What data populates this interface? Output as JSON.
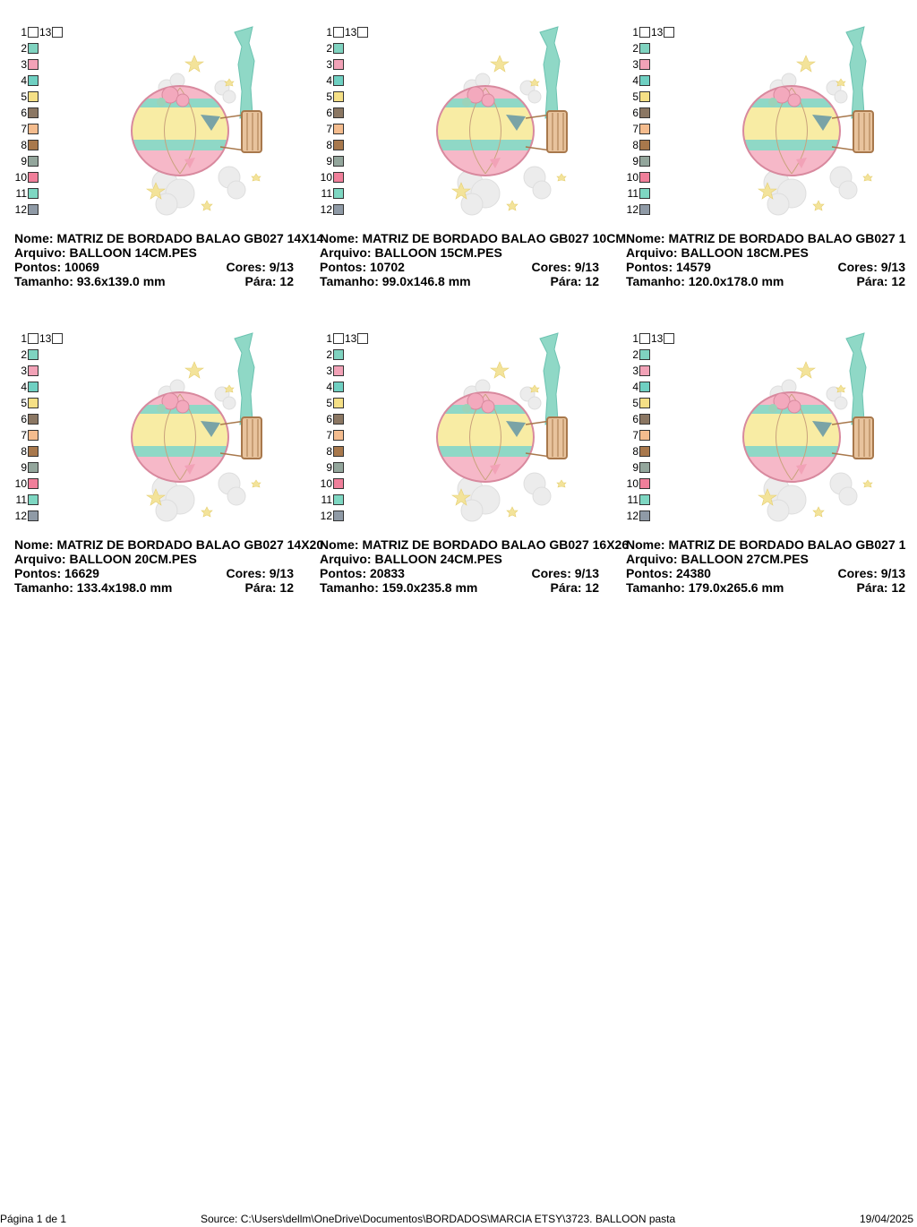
{
  "palette_colors": [
    "#ffffff",
    "#7fd3c0",
    "#f2a2b7",
    "#6fd0c2",
    "#f5e086",
    "#8b7763",
    "#f4bc8e",
    "#a8784c",
    "#93a69c",
    "#f07f9a",
    "#7ed7c2",
    "#8f9aa6"
  ],
  "palette": {
    "rows": [
      "1",
      "2",
      "3",
      "4",
      "5",
      "6",
      "7",
      "8",
      "9",
      "10",
      "11",
      "12"
    ],
    "extra": "13"
  },
  "designs": [
    {
      "nome": "Nome: MATRIZ DE BORDADO BALAO GB027 14X14",
      "arquivo": "Arquivo: BALLOON 14CM.PES",
      "pontos": "Pontos: 10069",
      "cores": "Cores: 9/13",
      "tamanho": "Tamanho: 93.6x139.0 mm",
      "para": "Pára: 12"
    },
    {
      "nome": "Nome: MATRIZ DE BORDADO BALAO GB027 10CM",
      "arquivo": "Arquivo: BALLOON 15CM.PES",
      "pontos": "Pontos: 10702",
      "cores": "Cores: 9/13",
      "tamanho": "Tamanho: 99.0x146.8 mm",
      "para": "Pára: 12"
    },
    {
      "nome": "Nome: MATRIZ DE BORDADO BALAO GB027 1",
      "arquivo": "Arquivo: BALLOON 18CM.PES",
      "pontos": "Pontos: 14579",
      "cores": "Cores: 9/13",
      "tamanho": "Tamanho: 120.0x178.0 mm",
      "para": "Pára: 12"
    },
    {
      "nome": "Nome: MATRIZ DE BORDADO BALAO GB027 14X20",
      "arquivo": "Arquivo: BALLOON 20CM.PES",
      "pontos": "Pontos: 16629",
      "cores": "Cores: 9/13",
      "tamanho": "Tamanho: 133.4x198.0 mm",
      "para": "Pára: 12"
    },
    {
      "nome": "Nome: MATRIZ DE BORDADO BALAO GB027 16X26",
      "arquivo": "Arquivo: BALLOON 24CM.PES",
      "pontos": "Pontos: 20833",
      "cores": "Cores: 9/13",
      "tamanho": "Tamanho: 159.0x235.8 mm",
      "para": "Pára: 12"
    },
    {
      "nome": "Nome: MATRIZ DE BORDADO BALAO GB027 1",
      "arquivo": "Arquivo: BALLOON 27CM.PES",
      "pontos": "Pontos: 24380",
      "cores": "Cores: 9/13",
      "tamanho": "Tamanho: 179.0x265.6 mm",
      "para": "Pára: 12"
    }
  ],
  "footer": {
    "page": "Página 1 de 1",
    "source": "Source: C:\\Users\\dellm\\OneDrive\\Documentos\\BORDADOS\\MARCIA ETSY\\3723. BALLOON pasta",
    "date": "19/04/2025"
  }
}
